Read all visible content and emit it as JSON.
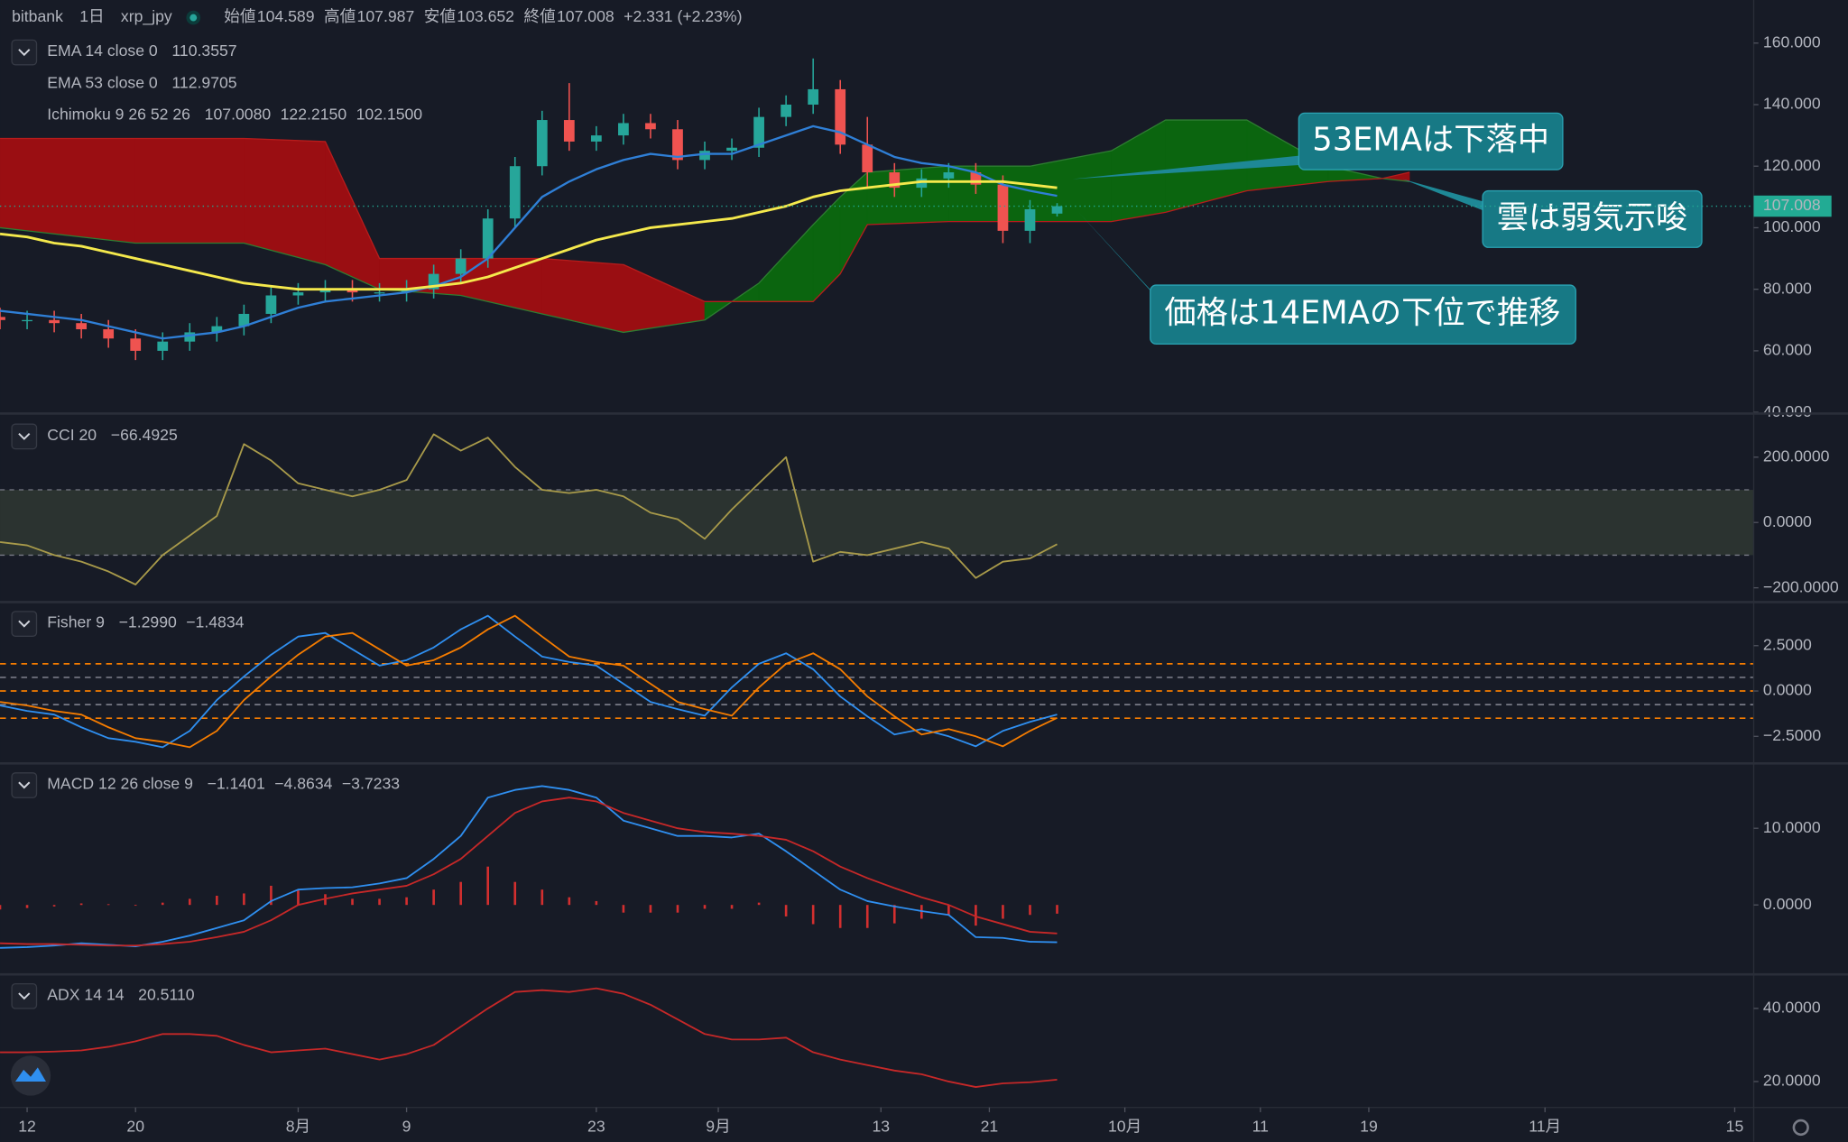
{
  "header": {
    "exchange": "bitbank",
    "interval": "1日",
    "symbol": "xrp_jpy",
    "fields": [
      {
        "label": "始値",
        "value": "104.589"
      },
      {
        "label": "高値",
        "value": "107.987"
      },
      {
        "label": "安値",
        "value": "103.652"
      },
      {
        "label": "終値",
        "value": "107.008"
      }
    ],
    "change": "+2.331 (+2.23%)"
  },
  "annotations": [
    "53EMAは下落中",
    "雲は弱気示唆",
    "価格は14EMAの下位で推移"
  ],
  "chart_data": [
    {
      "type": "candlestick",
      "x": [
        -2,
        0,
        2,
        4,
        6,
        8,
        10,
        12,
        14,
        16,
        18,
        20,
        22,
        24,
        26,
        28,
        30,
        32,
        34,
        36,
        38,
        40,
        42,
        44,
        46,
        48,
        50,
        52,
        54,
        56,
        58,
        60,
        62,
        64,
        66,
        68,
        70,
        72,
        74,
        76
      ],
      "open": [
        71,
        70,
        70,
        69,
        67,
        64,
        60,
        63,
        66,
        68,
        72,
        78,
        79,
        80,
        79,
        79,
        80,
        85,
        90,
        103,
        120,
        135,
        128,
        130,
        134,
        132,
        122,
        125,
        126,
        136,
        140,
        145,
        127,
        118,
        113,
        116,
        118,
        114,
        99,
        104.589
      ],
      "high": [
        74,
        73,
        73,
        72,
        70,
        67,
        66,
        69,
        71,
        75,
        81,
        82,
        83,
        83,
        82,
        83,
        88,
        93,
        106,
        123,
        138,
        147,
        133,
        137,
        137,
        135,
        128,
        129,
        139,
        143,
        155,
        148,
        136,
        121,
        119,
        121,
        121,
        117,
        109,
        107.987
      ],
      "low": [
        67,
        67,
        66,
        64,
        61,
        57,
        57,
        60,
        63,
        65,
        69,
        75,
        76,
        76,
        76,
        76,
        77,
        82,
        87,
        100,
        117,
        125,
        125,
        127,
        129,
        119,
        119,
        122,
        123,
        133,
        137,
        124,
        113,
        110,
        110,
        113,
        111,
        95,
        95,
        103.652
      ],
      "close": [
        70,
        70,
        69,
        67,
        64,
        60,
        63,
        66,
        68,
        72,
        78,
        79,
        80,
        79,
        79,
        80,
        85,
        90,
        103,
        120,
        135,
        128,
        130,
        134,
        132,
        122,
        125,
        126,
        136,
        140,
        145,
        127,
        118,
        113,
        116,
        118,
        114,
        99,
        106,
        107.008
      ],
      "up_color": "#26a69a",
      "down_color": "#ef5350",
      "series": [
        {
          "name": "EMA 14 close 0",
          "color": "#2f7fd6",
          "legend_value": "110.3557",
          "values": [
            73,
            72,
            71,
            70,
            68,
            66,
            64,
            65,
            66,
            68,
            71,
            74,
            76,
            77,
            78,
            79,
            81,
            84,
            90,
            100,
            110,
            115,
            119,
            122,
            124,
            123,
            124,
            124,
            127,
            130,
            133,
            131,
            127,
            123,
            121,
            120,
            118,
            114,
            112,
            110.3557
          ]
        },
        {
          "name": "EMA 53 close 0",
          "color": "#f5e94c",
          "legend_value": "112.9705",
          "values": [
            98,
            97,
            95,
            94,
            92,
            90,
            88,
            86,
            84,
            82,
            81,
            80,
            80,
            80,
            80,
            80,
            81,
            82,
            84,
            87,
            90,
            93,
            96,
            98,
            100,
            101,
            102,
            103,
            105,
            107,
            110,
            112,
            113,
            114,
            115,
            115,
            115,
            115,
            114,
            112.9705
          ]
        }
      ],
      "ichimoku": {
        "name": "Ichimoku 9 26 52 26",
        "legend_values": [
          "107.0080",
          "122.2150",
          "102.1500"
        ],
        "legend_colors": [
          "#4caf50",
          "#66bb6a",
          "#f23645"
        ],
        "x": [
          -2,
          8,
          16,
          22,
          26,
          32,
          38,
          44,
          50,
          54,
          58,
          60,
          62,
          68,
          74,
          80,
          84,
          90,
          96,
          100,
          102
        ],
        "span_a": [
          100,
          95,
          95,
          88,
          80,
          78,
          72,
          66,
          70,
          82,
          101,
          110,
          118,
          120,
          120,
          125,
          135,
          135,
          120,
          116,
          115
        ],
        "span_b": [
          129,
          129,
          129,
          128,
          90,
          90,
          90,
          88,
          76,
          76,
          76,
          85,
          101,
          102,
          102,
          102,
          105,
          112,
          115,
          116,
          118
        ],
        "bull_color": "#0b650f",
        "bear_color": "#9a0e12"
      },
      "last_price": 107.008,
      "ylim": [
        40,
        174
      ],
      "yticks": [
        {
          "value": 160,
          "label": "160.000"
        },
        {
          "value": 140,
          "label": "140.000"
        },
        {
          "value": 120,
          "label": "120.000"
        },
        {
          "value": 100,
          "label": "100.000"
        },
        {
          "value": 80,
          "label": "80.000"
        },
        {
          "value": 60,
          "label": "60.000"
        },
        {
          "value": 40,
          "label": "40.000"
        }
      ]
    },
    {
      "type": "line",
      "indicator": {
        "name": "CCI 20",
        "legend_values": [
          "−66.4925"
        ],
        "legend_colors": [
          "#c8b560"
        ]
      },
      "x": [
        -2,
        0,
        2,
        4,
        6,
        8,
        10,
        12,
        14,
        16,
        18,
        20,
        22,
        24,
        26,
        28,
        30,
        32,
        34,
        36,
        38,
        40,
        42,
        44,
        46,
        48,
        50,
        52,
        54,
        56,
        58,
        60,
        62,
        64,
        66,
        68,
        70,
        72,
        74,
        76
      ],
      "series": [
        {
          "color": "#a89a4a",
          "values": [
            -60,
            -70,
            -100,
            -120,
            -150,
            -190,
            -100,
            -40,
            20,
            240,
            190,
            120,
            100,
            80,
            100,
            130,
            270,
            220,
            260,
            170,
            100,
            90,
            100,
            80,
            30,
            10,
            -50,
            40,
            120,
            200,
            -120,
            -90,
            -100,
            -80,
            -60,
            -80,
            -170,
            -120,
            -110,
            -66.4925
          ]
        }
      ],
      "band": [
        -100,
        100
      ],
      "ylim": [
        -240,
        330
      ],
      "yticks": [
        {
          "value": 200,
          "label": "200.0000"
        },
        {
          "value": 0,
          "label": "0.0000"
        },
        {
          "value": -200,
          "label": "−200.0000"
        }
      ]
    },
    {
      "type": "line",
      "indicator": {
        "name": "Fisher 9",
        "legend_values": [
          "−1.2990",
          "−1.4834"
        ],
        "legend_colors": [
          "#2f8ff0",
          "#f57c00"
        ]
      },
      "x": [
        -2,
        0,
        2,
        4,
        6,
        8,
        10,
        12,
        14,
        16,
        18,
        20,
        22,
        24,
        26,
        28,
        30,
        32,
        34,
        36,
        38,
        40,
        42,
        44,
        46,
        48,
        50,
        52,
        54,
        56,
        58,
        60,
        62,
        64,
        66,
        68,
        70,
        72,
        74,
        76
      ],
      "series": [
        {
          "color": "#2f8ff0",
          "values": [
            -0.8,
            -1.1,
            -1.3,
            -2,
            -2.6,
            -2.8,
            -3.1,
            -2.2,
            -0.5,
            0.8,
            2,
            3,
            3.2,
            2.3,
            1.4,
            1.7,
            2.4,
            3.4,
            4.15,
            3.0,
            1.9,
            1.6,
            1.4,
            0.4,
            -0.6,
            -1.0,
            -1.36,
            0.2,
            1.5,
            2.08,
            1.2,
            -0.3,
            -1.4,
            -2.4,
            -2.1,
            -2.5,
            -3.05,
            -2.2,
            -1.7,
            -1.299
          ]
        },
        {
          "color": "#f57c00",
          "values": [
            -0.6,
            -0.8,
            -1.1,
            -1.3,
            -2,
            -2.6,
            -2.8,
            -3.1,
            -2.2,
            -0.5,
            0.8,
            2,
            3,
            3.2,
            2.3,
            1.4,
            1.7,
            2.4,
            3.4,
            4.15,
            3.0,
            1.9,
            1.6,
            1.4,
            0.4,
            -0.6,
            -1.0,
            -1.36,
            0.2,
            1.5,
            2.08,
            1.2,
            -0.3,
            -1.4,
            -2.4,
            -2.1,
            -2.5,
            -3.05,
            -2.2,
            -1.4834
          ]
        }
      ],
      "levels": [
        1.5,
        0.75,
        0,
        -0.75,
        -1.5
      ],
      "level_color": "#f57c00",
      "ylim": [
        -3.93,
        4.84
      ],
      "yticks": [
        {
          "value": 2.5,
          "label": "2.5000"
        },
        {
          "value": 0,
          "label": "0.0000"
        },
        {
          "value": -2.5,
          "label": "−2.5000"
        }
      ]
    },
    {
      "type": "line",
      "indicator": {
        "name": "MACD 12 26 close 9",
        "legend_values": [
          "−1.1401",
          "−4.8634",
          "−3.7233"
        ],
        "legend_colors": [
          "#f23645",
          "#2f8ff0",
          "#f23645"
        ]
      },
      "x": [
        -2,
        0,
        2,
        4,
        6,
        8,
        10,
        12,
        14,
        16,
        18,
        20,
        22,
        24,
        26,
        28,
        30,
        32,
        34,
        36,
        38,
        40,
        42,
        44,
        46,
        48,
        50,
        52,
        54,
        56,
        58,
        60,
        62,
        64,
        66,
        68,
        70,
        72,
        74,
        76
      ],
      "histogram": {
        "color": "#d32f2f",
        "values": [
          -0.6,
          -0.4,
          -0.2,
          0.2,
          0.1,
          -0.1,
          0.3,
          0.8,
          1.2,
          1.5,
          2.5,
          2.0,
          1.4,
          0.8,
          0.8,
          1.0,
          2.0,
          3.0,
          5.0,
          3.0,
          2.0,
          1.0,
          0.5,
          -1.0,
          -1.0,
          -1.0,
          -0.5,
          -0.5,
          0.3,
          -1.5,
          -2.5,
          -3.0,
          -3.0,
          -2.4,
          -1.8,
          -1.3,
          -2.7,
          -1.8,
          -1.3,
          -1.1401
        ]
      },
      "series": [
        {
          "color": "#2f8ff0",
          "values": [
            -5.6,
            -5.5,
            -5.3,
            -5.0,
            -5.2,
            -5.4,
            -4.8,
            -4.0,
            -3.0,
            -2.0,
            0.5,
            2.0,
            2.2,
            2.3,
            2.8,
            3.5,
            6,
            9,
            14,
            15,
            15.5,
            15,
            14,
            11,
            10,
            9,
            9,
            8.8,
            9.3,
            7,
            4.5,
            2,
            0.5,
            -0.2,
            -0.8,
            -1.3,
            -4.2,
            -4.3,
            -4.8,
            -4.8634
          ]
        },
        {
          "color": "#c62828",
          "values": [
            -5.0,
            -5.1,
            -5.1,
            -5.2,
            -5.3,
            -5.3,
            -5.1,
            -4.8,
            -4.2,
            -3.5,
            -2,
            0,
            0.8,
            1.5,
            2,
            2.5,
            4,
            6,
            9,
            12,
            13.5,
            14,
            13.5,
            12,
            11,
            10,
            9.5,
            9.3,
            9,
            8.5,
            7,
            5,
            3.5,
            2.2,
            1,
            0,
            -1.5,
            -2.5,
            -3.5,
            -3.7233
          ]
        }
      ],
      "ylim": [
        -8.9,
        18.3
      ],
      "yticks": [
        {
          "value": 10,
          "label": "10.0000"
        },
        {
          "value": 0,
          "label": "0.0000"
        }
      ]
    },
    {
      "type": "line",
      "indicator": {
        "name": "ADX 14 14",
        "legend_values": [
          "20.5110"
        ],
        "legend_colors": [
          "#f23645"
        ]
      },
      "x": [
        -2,
        0,
        2,
        4,
        6,
        8,
        10,
        12,
        14,
        16,
        18,
        20,
        22,
        24,
        26,
        28,
        30,
        32,
        34,
        36,
        38,
        40,
        42,
        44,
        46,
        48,
        50,
        52,
        54,
        56,
        58,
        60,
        62,
        64,
        66,
        68,
        70,
        72,
        74,
        76
      ],
      "series": [
        {
          "color": "#c62828",
          "values": [
            28,
            28,
            28.2,
            28.5,
            29.5,
            31,
            33,
            33,
            32.5,
            30,
            28,
            28.5,
            29,
            27.5,
            26,
            27.5,
            30,
            35,
            40,
            44.5,
            45,
            44.5,
            45.5,
            44,
            41,
            37,
            33,
            31.5,
            31.5,
            32,
            28,
            26,
            24.5,
            23,
            22,
            20,
            18.5,
            19.5,
            19.8,
            20.511
          ]
        }
      ],
      "ylim": [
        12.9,
        49
      ],
      "yticks": [
        {
          "value": 40,
          "label": "40.0000"
        },
        {
          "value": 20,
          "label": "20.0000"
        }
      ],
      "xlim": [
        -2,
        127.4
      ],
      "xticks": [
        {
          "value": 0,
          "label": "12"
        },
        {
          "value": 8,
          "label": "20"
        },
        {
          "value": 20,
          "label": "8月"
        },
        {
          "value": 28,
          "label": "9"
        },
        {
          "value": 42,
          "label": "23"
        },
        {
          "value": 51,
          "label": "9月"
        },
        {
          "value": 63,
          "label": "13"
        },
        {
          "value": 71,
          "label": "21"
        },
        {
          "value": 81,
          "label": "10月"
        },
        {
          "value": 91,
          "label": "11"
        },
        {
          "value": 99,
          "label": "19"
        },
        {
          "value": 112,
          "label": "11月"
        },
        {
          "value": 126,
          "label": "15"
        }
      ]
    }
  ]
}
